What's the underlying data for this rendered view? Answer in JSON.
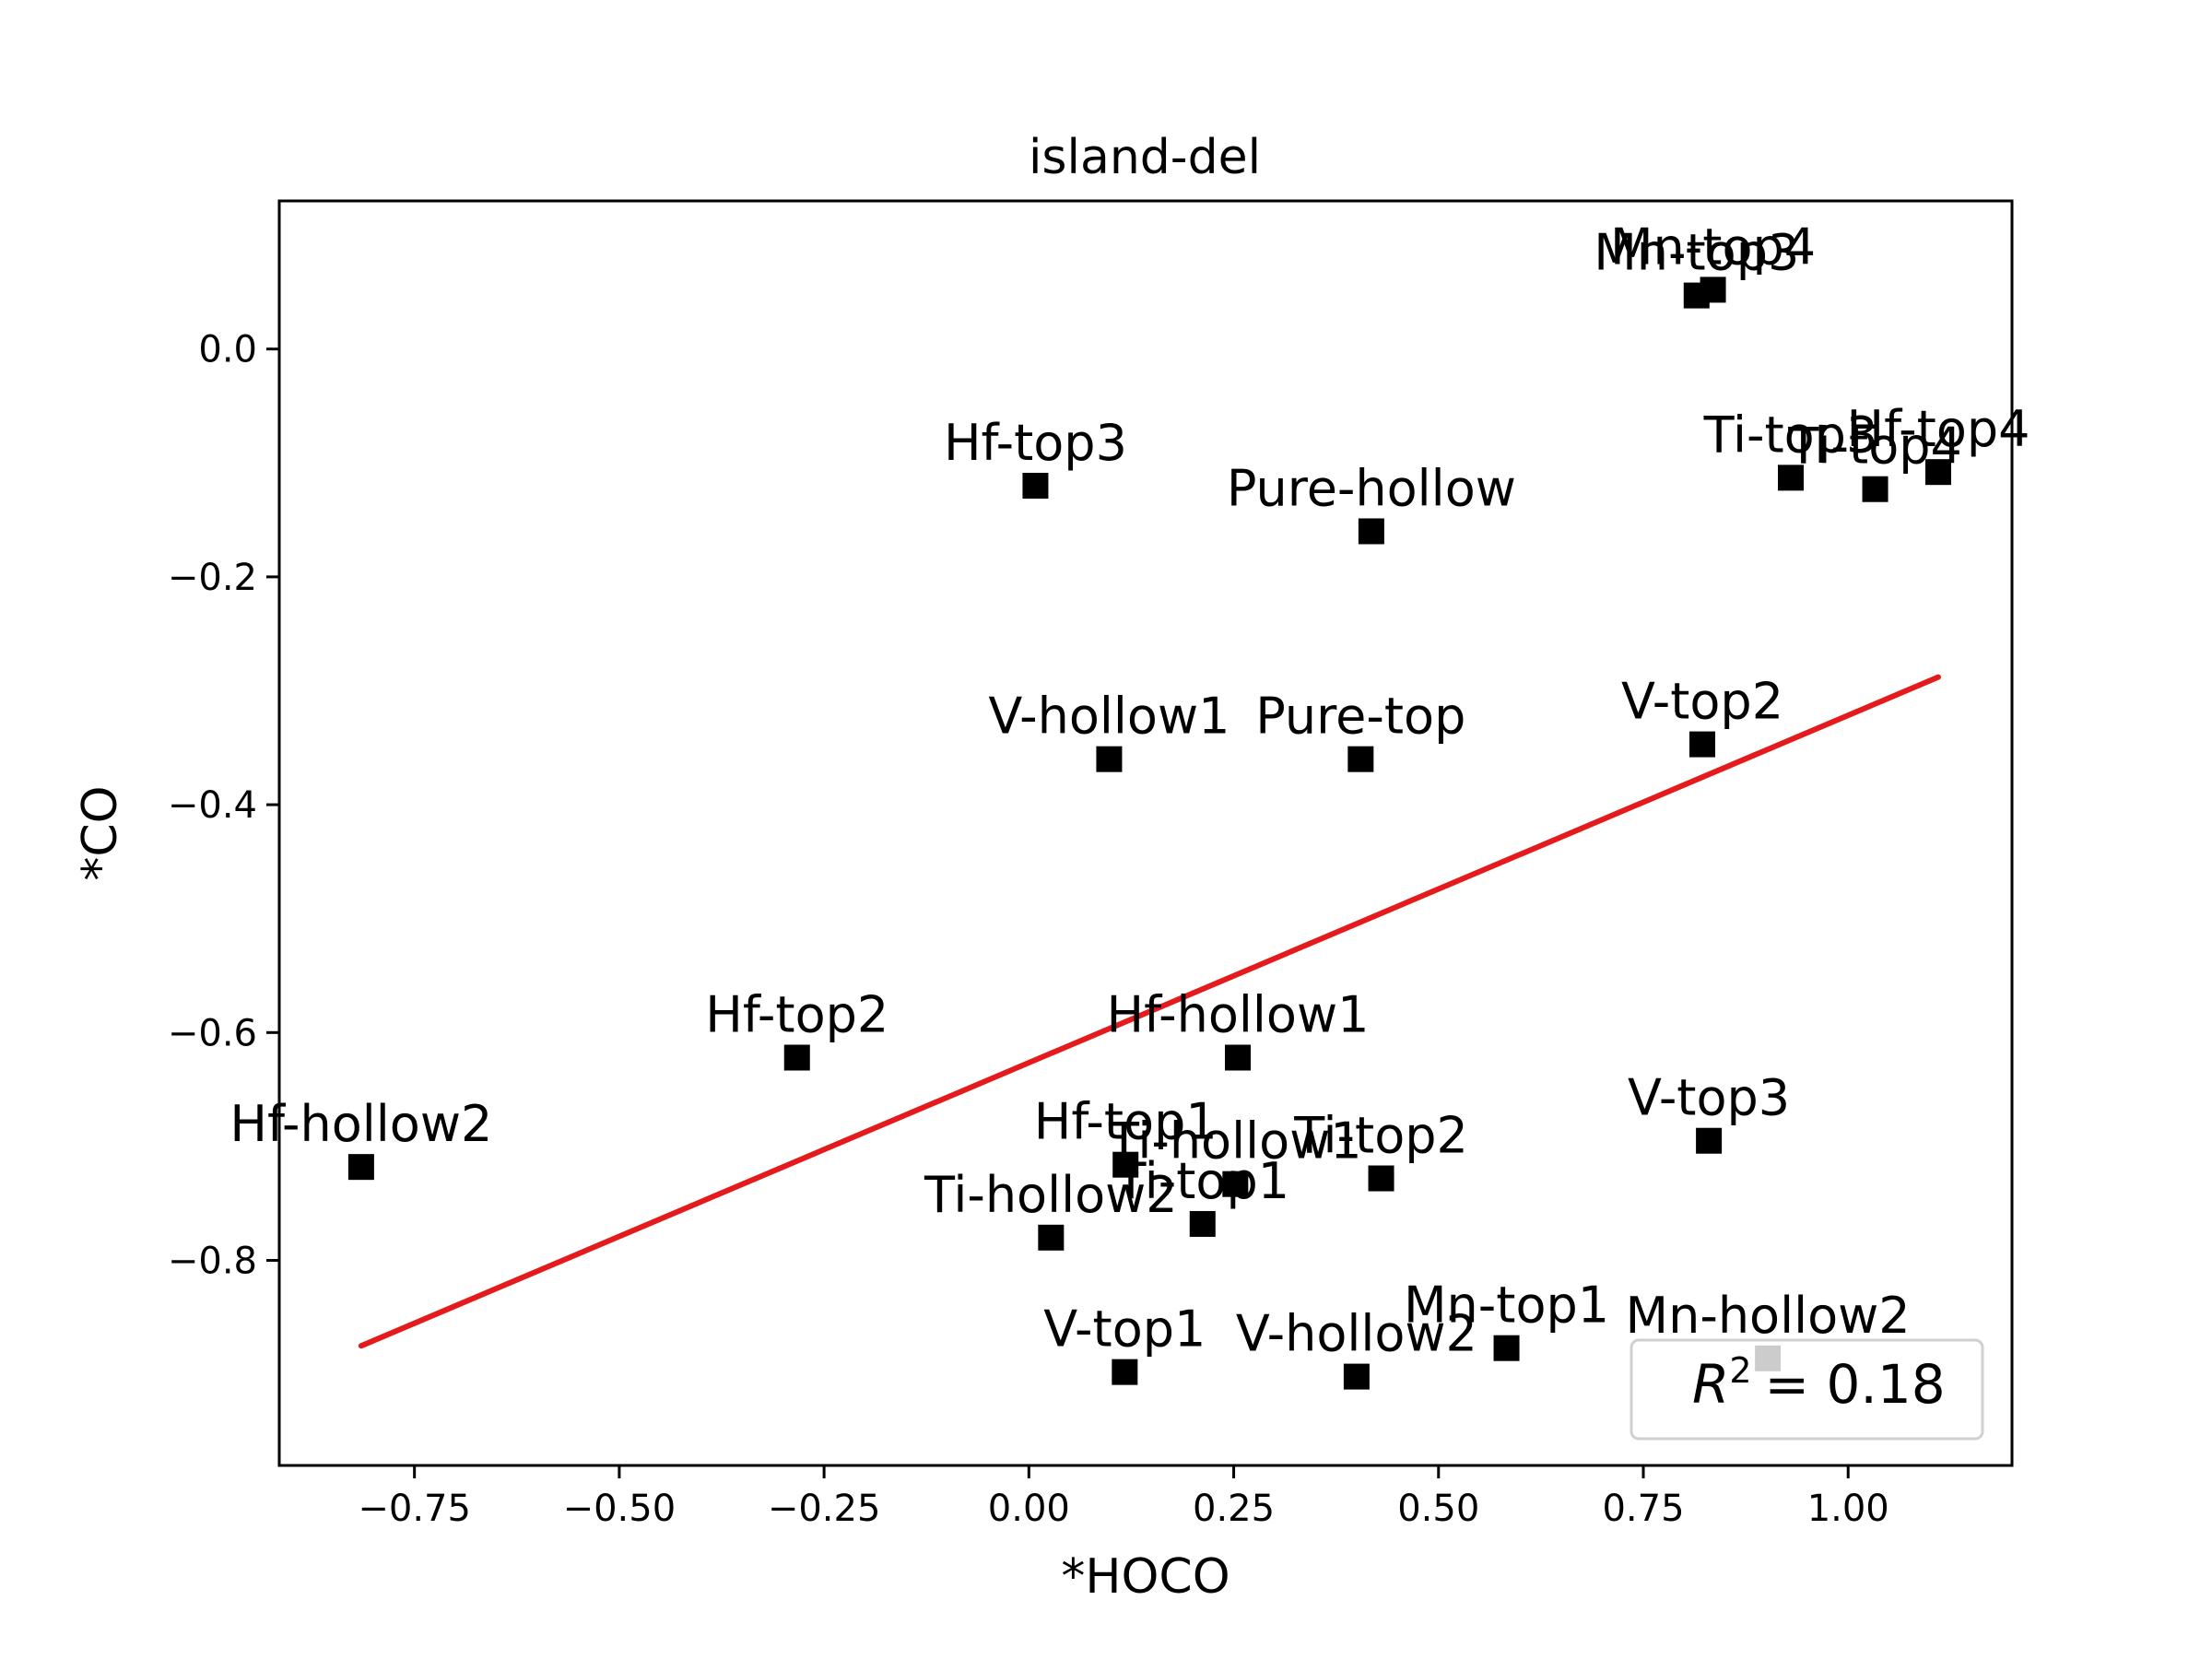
{
  "chart_data": {
    "type": "scatter",
    "title": "island-del",
    "xlabel": "*HOCO",
    "ylabel": "*CO",
    "xlim": [
      -0.915,
      1.2
    ],
    "ylim": [
      -0.98,
      0.13
    ],
    "xticks": [
      {
        "value": -0.75,
        "label": "−0.75"
      },
      {
        "value": -0.5,
        "label": "−0.50"
      },
      {
        "value": -0.25,
        "label": "−0.25"
      },
      {
        "value": 0,
        "label": "0.00"
      },
      {
        "value": 0.25,
        "label": "0.25"
      },
      {
        "value": 0.5,
        "label": "0.50"
      },
      {
        "value": 0.75,
        "label": "0.75"
      },
      {
        "value": 1.0,
        "label": "1.00"
      }
    ],
    "yticks": [
      {
        "value": 0,
        "label": "0.0"
      },
      {
        "value": -0.2,
        "label": "−0.2"
      },
      {
        "value": -0.4,
        "label": "−0.4"
      },
      {
        "value": -0.6,
        "label": "−0.6"
      },
      {
        "value": -0.8,
        "label": "−0.8"
      }
    ],
    "grid": false,
    "marker_color": "#000000",
    "fit_line_color": "#e41a1c",
    "points": [
      {
        "label": "Mn-top4",
        "x": 0.835,
        "y": 0.052
      },
      {
        "label": "Mn-top3",
        "x": 0.815,
        "y": 0.047
      },
      {
        "label": "Hf-top3",
        "x": 0.008,
        "y": -0.12
      },
      {
        "label": "Pure-hollow",
        "x": 0.418,
        "y": -0.16
      },
      {
        "label": "Ti-top3",
        "x": 0.93,
        "y": -0.113
      },
      {
        "label": "Ti-top4",
        "x": 1.033,
        "y": -0.123
      },
      {
        "label": "Hf-top4",
        "x": 1.11,
        "y": -0.108
      },
      {
        "label": "V-top2",
        "x": 0.822,
        "y": -0.347
      },
      {
        "label": "V-hollow1",
        "x": 0.098,
        "y": -0.36
      },
      {
        "label": "Pure-top",
        "x": 0.405,
        "y": -0.36
      },
      {
        "label": "Hf-top2",
        "x": -0.283,
        "y": -0.622
      },
      {
        "label": "Hf-hollow1",
        "x": 0.255,
        "y": -0.622
      },
      {
        "label": "Hf-hollow2",
        "x": -0.815,
        "y": -0.718
      },
      {
        "label": "V-top3",
        "x": 0.83,
        "y": -0.695
      },
      {
        "label": "Hf-top1",
        "x": 0.118,
        "y": -0.716
      },
      {
        "label": "Ti-hollow1",
        "x": 0.252,
        "y": -0.733
      },
      {
        "label": "Ti-top2",
        "x": 0.43,
        "y": -0.728
      },
      {
        "label": "Ti-top1",
        "x": 0.212,
        "y": -0.768
      },
      {
        "label": "Ti-hollow2",
        "x": 0.027,
        "y": -0.78
      },
      {
        "label": "V-top1",
        "x": 0.117,
        "y": -0.898
      },
      {
        "label": "V-hollow2",
        "x": 0.4,
        "y": -0.902
      },
      {
        "label": "Mn-top1",
        "x": 0.583,
        "y": -0.877
      },
      {
        "label": "Mn-hollow2",
        "x": 0.902,
        "y": -0.886
      }
    ],
    "fit_line": {
      "x": [
        -0.815,
        1.11
      ],
      "y": [
        -0.875,
        -0.288
      ]
    },
    "legend": {
      "text": "= 0.18",
      "symbol_base": "R",
      "symbol_exp": "2",
      "placement": "lower-right"
    }
  }
}
